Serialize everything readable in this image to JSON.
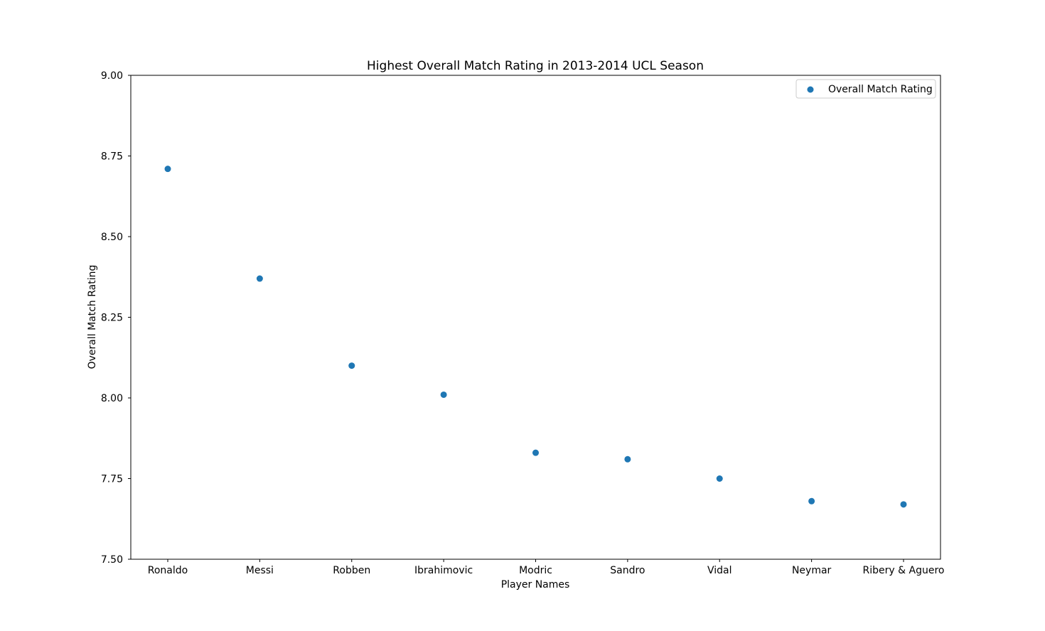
{
  "chart_data": {
    "type": "scatter",
    "title": "Highest Overall Match Rating in 2013-2014 UCL Season",
    "xlabel": "Player Names",
    "ylabel": "Overall Match Rating",
    "categories": [
      "Ronaldo",
      "Messi",
      "Robben",
      "Ibrahimovic",
      "Modric",
      "Sandro",
      "Vidal",
      "Neymar",
      "Ribery & Aguero"
    ],
    "series": [
      {
        "name": "Overall Match Rating",
        "color": "#1f77b4",
        "values": [
          8.71,
          8.37,
          8.1,
          8.01,
          7.83,
          7.81,
          7.75,
          7.68,
          7.67
        ]
      }
    ],
    "ylim": [
      7.5,
      9.0
    ],
    "yticks": [
      "7.50",
      "7.75",
      "8.00",
      "8.25",
      "8.50",
      "8.75",
      "9.00"
    ],
    "grid": false,
    "legend_position": "upper right"
  }
}
